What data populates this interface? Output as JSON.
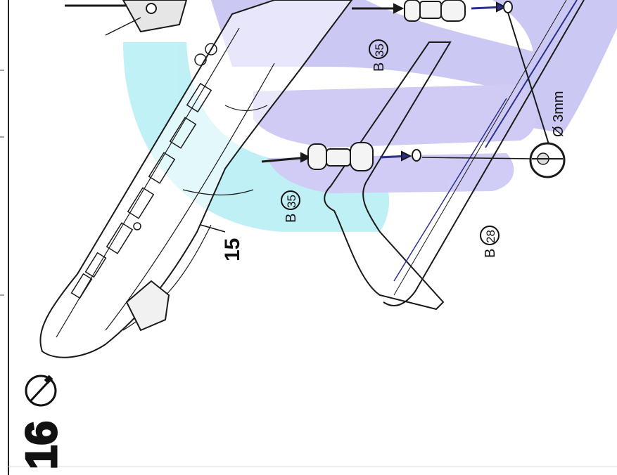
{
  "step": {
    "number": "16"
  },
  "callouts": {
    "part_15": "15",
    "b35_upper": "B",
    "b35_upper_num": "35",
    "b35_lower": "B",
    "b35_lower_num": "35",
    "b28": "B",
    "b28_num": "28",
    "hole_diameter": "Ø 3mm"
  },
  "colors": {
    "ink": "#1a1a1a",
    "highlight_blue": "#b8b2ee",
    "highlight_cyan": "#a9ecf2",
    "frame_blue": "#2b2f8f"
  },
  "icons": {
    "step_icon": "screwdriver-icon"
  }
}
